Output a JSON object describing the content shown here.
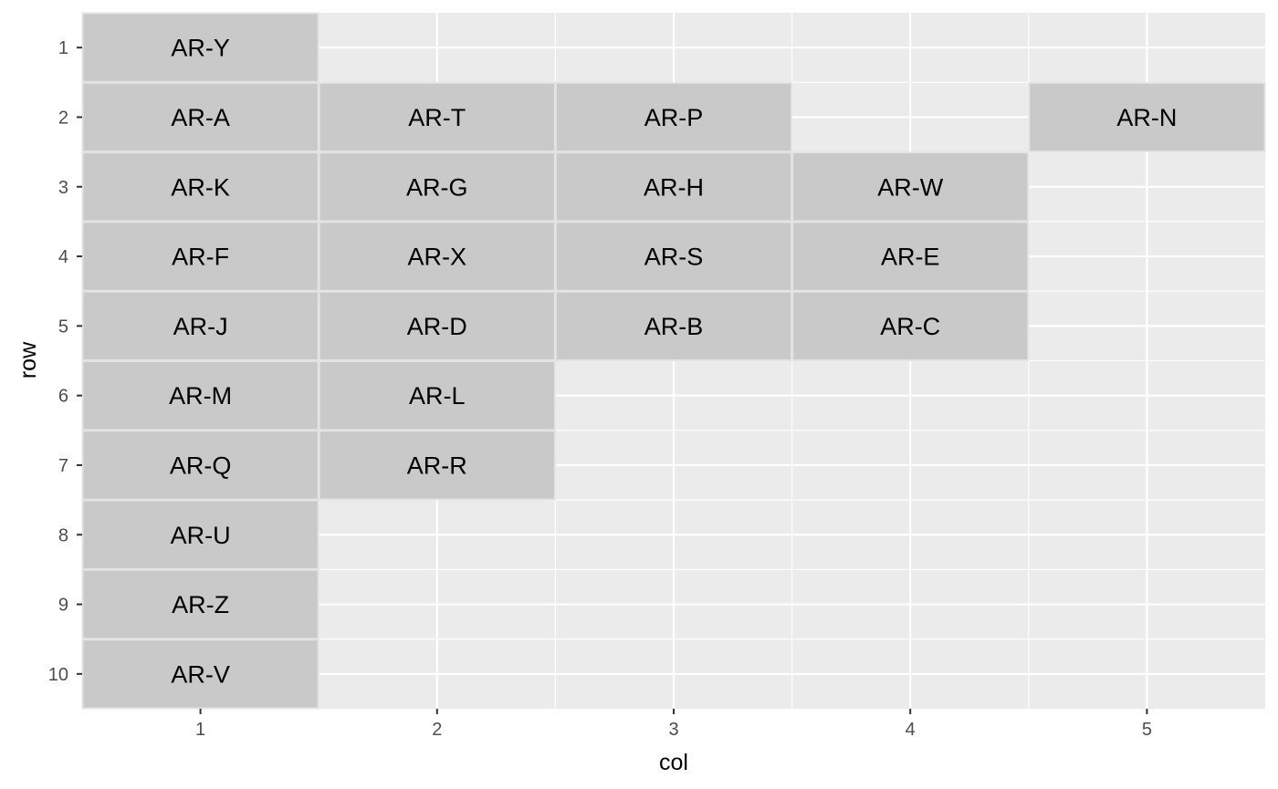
{
  "chart_data": {
    "type": "heatmap",
    "title": "",
    "xlabel": "col",
    "ylabel": "row",
    "xlim": [
      0.5,
      5.5
    ],
    "ylim": [
      0.5,
      10.5
    ],
    "y_reversed": true,
    "x_ticks": [
      "1",
      "2",
      "3",
      "4",
      "5"
    ],
    "y_ticks": [
      "1",
      "2",
      "3",
      "4",
      "5",
      "6",
      "7",
      "8",
      "9",
      "10"
    ],
    "grid": true,
    "colors": {
      "panel_background": "#ebebeb",
      "grid_line": "#ffffff",
      "tile_fill": "#c9c9c9",
      "tile_border": "#e3e3e3"
    },
    "tiles": [
      {
        "label": "AR-Y",
        "col": 1,
        "row": 1
      },
      {
        "label": "AR-A",
        "col": 1,
        "row": 2
      },
      {
        "label": "AR-T",
        "col": 2,
        "row": 2
      },
      {
        "label": "AR-P",
        "col": 3,
        "row": 2
      },
      {
        "label": "AR-N",
        "col": 5,
        "row": 2
      },
      {
        "label": "AR-K",
        "col": 1,
        "row": 3
      },
      {
        "label": "AR-G",
        "col": 2,
        "row": 3
      },
      {
        "label": "AR-H",
        "col": 3,
        "row": 3
      },
      {
        "label": "AR-W",
        "col": 4,
        "row": 3
      },
      {
        "label": "AR-F",
        "col": 1,
        "row": 4
      },
      {
        "label": "AR-X",
        "col": 2,
        "row": 4
      },
      {
        "label": "AR-S",
        "col": 3,
        "row": 4
      },
      {
        "label": "AR-E",
        "col": 4,
        "row": 4
      },
      {
        "label": "AR-J",
        "col": 1,
        "row": 5
      },
      {
        "label": "AR-D",
        "col": 2,
        "row": 5
      },
      {
        "label": "AR-B",
        "col": 3,
        "row": 5
      },
      {
        "label": "AR-C",
        "col": 4,
        "row": 5
      },
      {
        "label": "AR-M",
        "col": 1,
        "row": 6
      },
      {
        "label": "AR-L",
        "col": 2,
        "row": 6
      },
      {
        "label": "AR-Q",
        "col": 1,
        "row": 7
      },
      {
        "label": "AR-R",
        "col": 2,
        "row": 7
      },
      {
        "label": "AR-U",
        "col": 1,
        "row": 8
      },
      {
        "label": "AR-Z",
        "col": 1,
        "row": 9
      },
      {
        "label": "AR-V",
        "col": 1,
        "row": 10
      }
    ]
  }
}
